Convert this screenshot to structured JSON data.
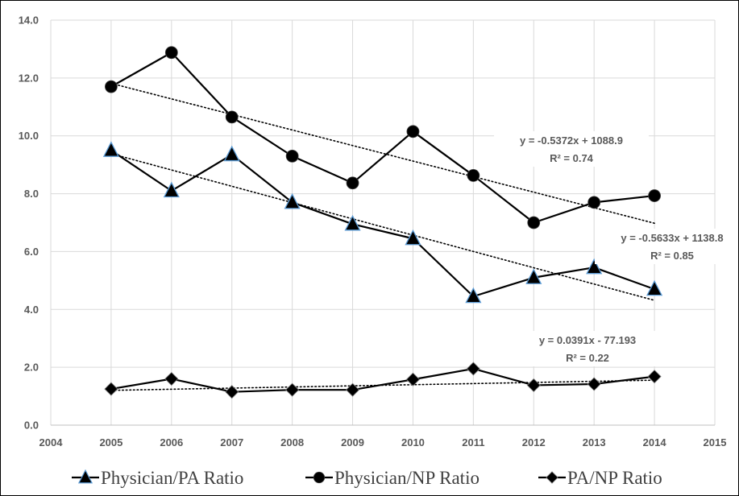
{
  "chart_data": {
    "type": "line",
    "title": "",
    "xlabel": "",
    "ylabel": "",
    "xlim": [
      2004,
      2015
    ],
    "ylim": [
      0,
      14
    ],
    "x_ticks": [
      2004,
      2005,
      2006,
      2007,
      2008,
      2009,
      2010,
      2011,
      2012,
      2013,
      2014,
      2015
    ],
    "y_ticks": [
      0,
      2,
      4,
      6,
      8,
      10,
      12,
      14
    ],
    "y_tick_labels": [
      "0.0",
      "2.0",
      "4.0",
      "6.0",
      "8.0",
      "10.0",
      "12.0",
      "14.0"
    ],
    "grid": "vertical and horizontal",
    "legend_position": "bottom",
    "x": [
      2005,
      2006,
      2007,
      2008,
      2009,
      2010,
      2011,
      2012,
      2013,
      2014
    ],
    "series": [
      {
        "name": "Physician/PA Ratio",
        "marker": "triangle",
        "values": [
          9.5,
          8.1,
          9.35,
          7.7,
          6.95,
          6.45,
          4.45,
          5.1,
          5.45,
          4.7
        ],
        "trendline": {
          "slope": -0.5633,
          "intercept": 1138.8,
          "equation": "y = -0.5633x + 1138.8",
          "r2": "R² = 0.85"
        }
      },
      {
        "name": "Physician/NP Ratio",
        "marker": "circle",
        "values": [
          11.7,
          12.88,
          10.65,
          9.3,
          8.37,
          10.15,
          8.63,
          7.0,
          7.7,
          7.93
        ],
        "trendline": {
          "slope": -0.5372,
          "intercept": 1088.9,
          "equation": "y = -0.5372x + 1088.9",
          "r2": "R² = 0.74"
        }
      },
      {
        "name": "PA/NP Ratio",
        "marker": "diamond",
        "values": [
          1.25,
          1.6,
          1.15,
          1.22,
          1.22,
          1.58,
          1.95,
          1.38,
          1.42,
          1.68
        ],
        "trendline": {
          "slope": 0.0391,
          "intercept": -77.193,
          "equation": "y = 0.0391x - 77.193",
          "r2": "R² = 0.22"
        }
      }
    ]
  }
}
